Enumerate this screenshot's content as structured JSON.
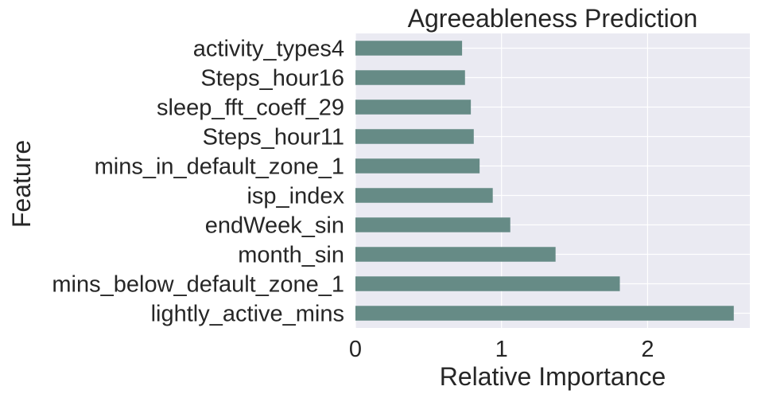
{
  "chart_data": {
    "type": "bar",
    "orientation": "horizontal",
    "title": "Agreeableness Prediction",
    "xlabel": "Relative Importance",
    "ylabel": "Feature",
    "xlim": [
      0,
      2.7
    ],
    "xticks": [
      0,
      1,
      2
    ],
    "grid": true,
    "bar_color": "#668B86",
    "background_color": "#EAEAF2",
    "categories": [
      "activity_types4",
      "Steps_hour16",
      "sleep_fft_coeff_29",
      "Steps_hour11",
      "mins_in_default_zone_1",
      "isp_index",
      "endWeek_sin",
      "month_sin",
      "mins_below_default_zone_1",
      "lightly_active_mins"
    ],
    "values": [
      0.73,
      0.75,
      0.79,
      0.81,
      0.85,
      0.94,
      1.06,
      1.37,
      1.81,
      2.59
    ]
  }
}
